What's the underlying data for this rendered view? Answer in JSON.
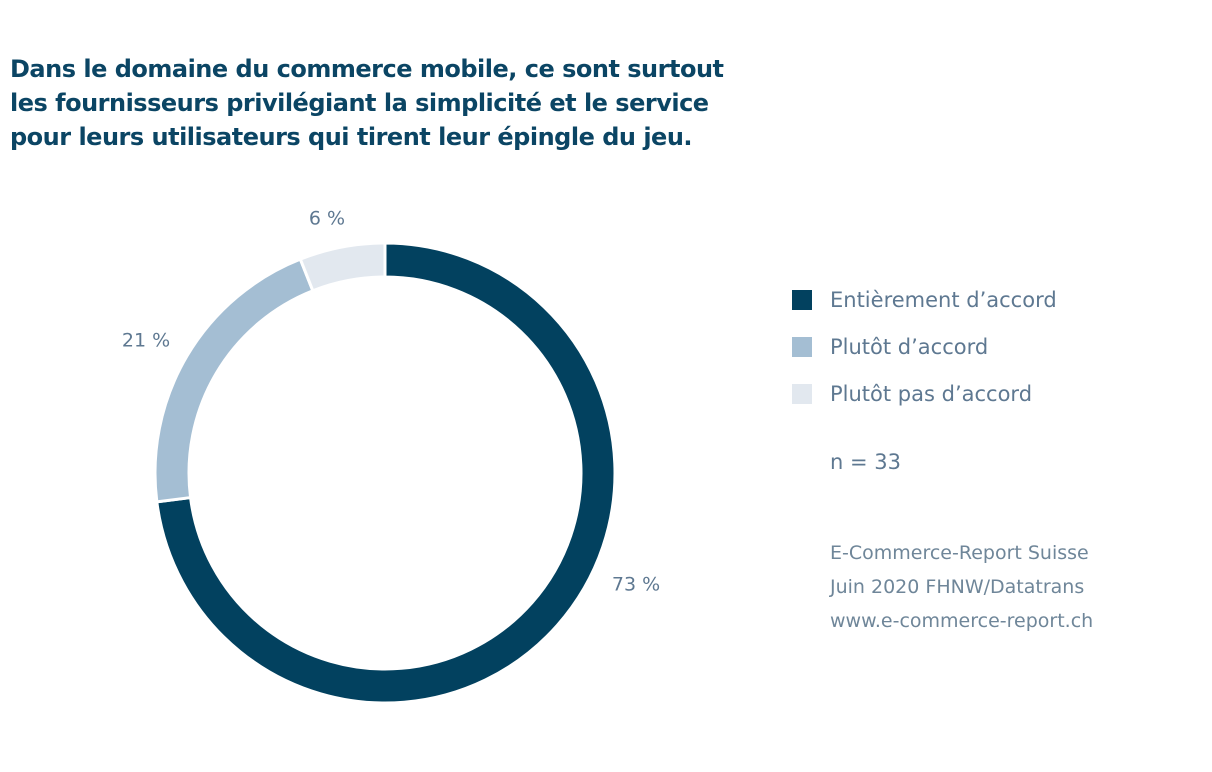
{
  "title": {
    "lines": [
      "Dans le domaine du commerce mobile, ce sont surtout",
      "les fournisseurs privilégiant la simplicité et le service",
      "pour leurs utilisateurs qui tirent leur épingle du jeu."
    ]
  },
  "colors": {
    "title": "#0b4564",
    "text": "#5e7891",
    "series": [
      "#02415f",
      "#a4bed3",
      "#e2e8ef"
    ]
  },
  "chart_data": {
    "type": "pie",
    "variant": "donut",
    "title": "Dans le domaine du commerce mobile, ce sont surtout les fournisseurs privilégiant la simplicité et le service pour leurs utilisateurs qui tirent leur épingle du jeu.",
    "categories": [
      "Entièrement d’accord",
      "Plutôt d’accord",
      "Plutôt pas d’accord"
    ],
    "values": [
      73,
      21,
      6
    ],
    "data_labels": [
      "73 %",
      "21 %",
      "6 %"
    ],
    "unit": "%",
    "legend_position": "right",
    "start": "top, clockwise"
  },
  "sample_size": "n = 33",
  "source": {
    "lines": [
      "E-Commerce-Report Suisse",
      "Juin 2020 FHNW/Datatrans",
      "www.e-commerce-report.ch"
    ]
  }
}
